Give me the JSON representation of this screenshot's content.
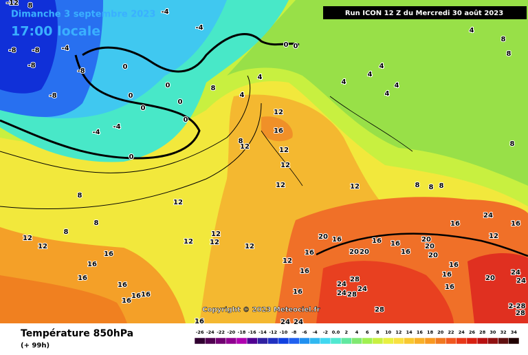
{
  "header": {
    "date": "Dimanche 3 septembre 2023",
    "time": "17:00 locale",
    "run": "Run ICON 12 Z du Mercredi 30 août 2023"
  },
  "copyright": "Copyright © 2023 Meteociel.fr",
  "footer": {
    "title": "Température 850hPa",
    "lead": "(+ 99h)"
  },
  "legend": {
    "labels": [
      "-26",
      "-24",
      "-22",
      "-20",
      "-18",
      "-16",
      "-14",
      "-12",
      "-10",
      "-8",
      "-6",
      "-4",
      "-2",
      "0.0",
      "2",
      "4",
      "6",
      "8",
      "10",
      "12",
      "14",
      "16",
      "18",
      "20",
      "22",
      "24",
      "26",
      "28",
      "30",
      "32",
      "34"
    ]
  },
  "map": {
    "labels": [
      "8",
      "-12",
      "-4",
      "-4",
      "-4",
      "-8",
      "-8",
      "-8",
      "-8",
      "-8",
      "-4",
      "-4",
      "0",
      "0",
      "0",
      "0",
      "0",
      "0",
      "0",
      "0",
      "0",
      "8",
      "4",
      "4",
      "4",
      "4",
      "4",
      "4",
      "4",
      "4",
      "8",
      "8",
      "12",
      "16",
      "12",
      "8",
      "12",
      "12",
      "12",
      "12",
      "8",
      "8",
      "8",
      "8",
      "12",
      "8",
      "8",
      "8",
      "12",
      "12",
      "12",
      "12",
      "12",
      "12",
      "16",
      "16",
      "16",
      "16",
      "16",
      "16",
      "16",
      "16",
      "20",
      "16",
      "16",
      "16",
      "16",
      "16",
      "20",
      "20",
      "20",
      "16",
      "16",
      "16",
      "12",
      "16",
      "20",
      "24",
      "24",
      "2-28",
      "28",
      "20",
      "20",
      "16",
      "12",
      "16",
      "16",
      "24",
      "24",
      "28",
      "28",
      "24",
      "28",
      "24",
      "24",
      "24"
    ]
  }
}
